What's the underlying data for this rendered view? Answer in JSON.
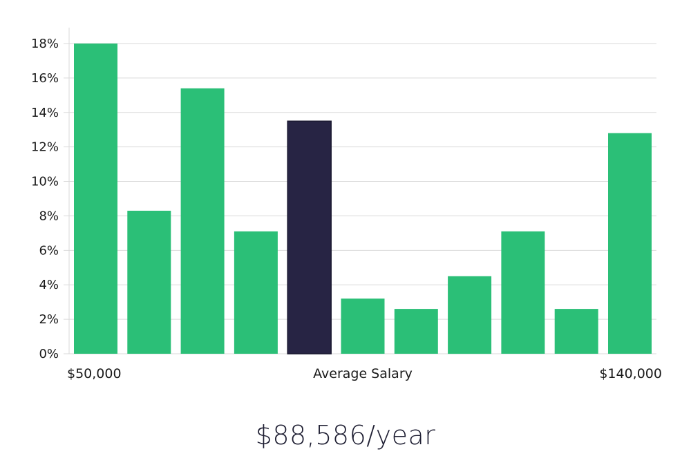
{
  "chart_data": {
    "type": "bar",
    "values": [
      18.0,
      8.3,
      15.4,
      7.1,
      13.5,
      3.2,
      2.6,
      4.5,
      7.1,
      2.6,
      12.8
    ],
    "highlight_index": 4,
    "ylim": [
      0,
      18
    ],
    "yticks": [
      "0%",
      "2%",
      "4%",
      "6%",
      "8%",
      "10%",
      "12%",
      "14%",
      "16%",
      "18%"
    ],
    "x_labels": {
      "left": "$50,000",
      "center": "Average Salary",
      "right": "$140,000"
    },
    "colors": {
      "bar": "#2bbf77",
      "highlight": "#272444",
      "grid": "#d9d9d9"
    },
    "grid": true
  },
  "salary_text": "$88,586/year"
}
